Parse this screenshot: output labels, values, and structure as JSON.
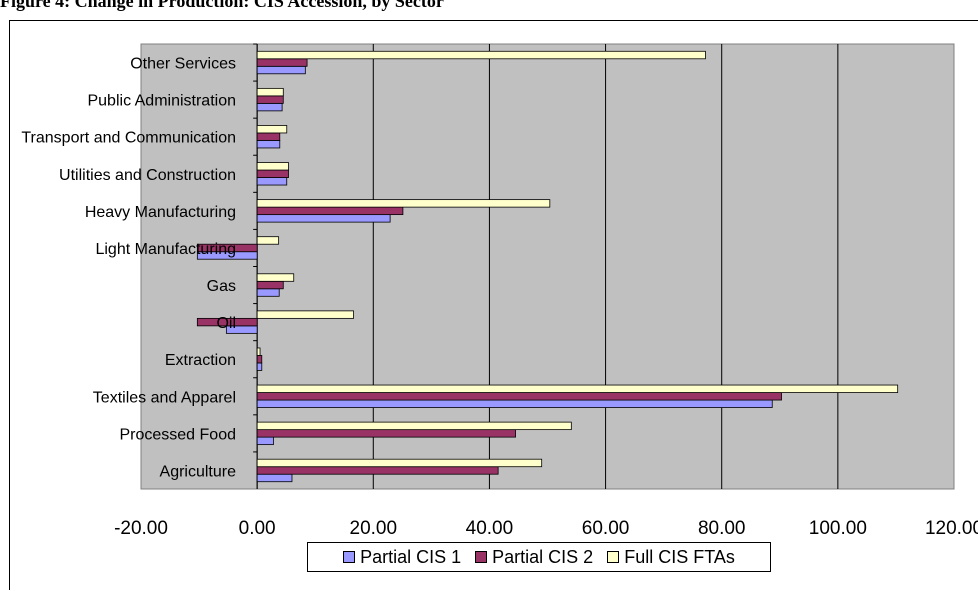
{
  "title": "Figure 4: Change in Production: CIS Accession, by Sector",
  "chart_data": {
    "type": "bar",
    "orientation": "horizontal",
    "title": "",
    "xlabel": "",
    "ylabel": "",
    "categories": [
      "Agriculture",
      "Processed Food",
      "Textiles and Apparel",
      "Extraction",
      "Oil",
      "Gas",
      "Light Manufacturing",
      "Heavy Manufacturing",
      "Utilities and Construction",
      "Transport and Communication",
      "Public Administration",
      "Other Services"
    ],
    "series": [
      {
        "name": "Partial CIS 1",
        "color": "#9999FF",
        "values": [
          6.0,
          2.8,
          88.7,
          0.8,
          -5.3,
          3.8,
          -10.3,
          22.9,
          5.1,
          3.9,
          4.3,
          8.3
        ]
      },
      {
        "name": "Partial CIS 2",
        "color": "#993366",
        "values": [
          41.5,
          44.5,
          90.3,
          0.8,
          -10.3,
          4.5,
          -10.3,
          25.1,
          5.4,
          3.9,
          4.5,
          8.6
        ]
      },
      {
        "name": "Full CIS FTAs",
        "color": "#FFFFCC",
        "values": [
          49.0,
          54.1,
          110.3,
          0.5,
          16.6,
          6.3,
          3.7,
          50.4,
          5.4,
          5.1,
          4.5,
          77.2
        ]
      }
    ],
    "xlim": [
      -20,
      120
    ],
    "xticks": [
      -20,
      0,
      20,
      40,
      60,
      80,
      100,
      120
    ],
    "xtick_labels": [
      "-20.00",
      "0.00",
      "20.00",
      "40.00",
      "60.00",
      "80.00",
      "100.00",
      "120.00"
    ],
    "plot_background": "#C0C0C0",
    "grid": true,
    "legend_position": "bottom"
  }
}
